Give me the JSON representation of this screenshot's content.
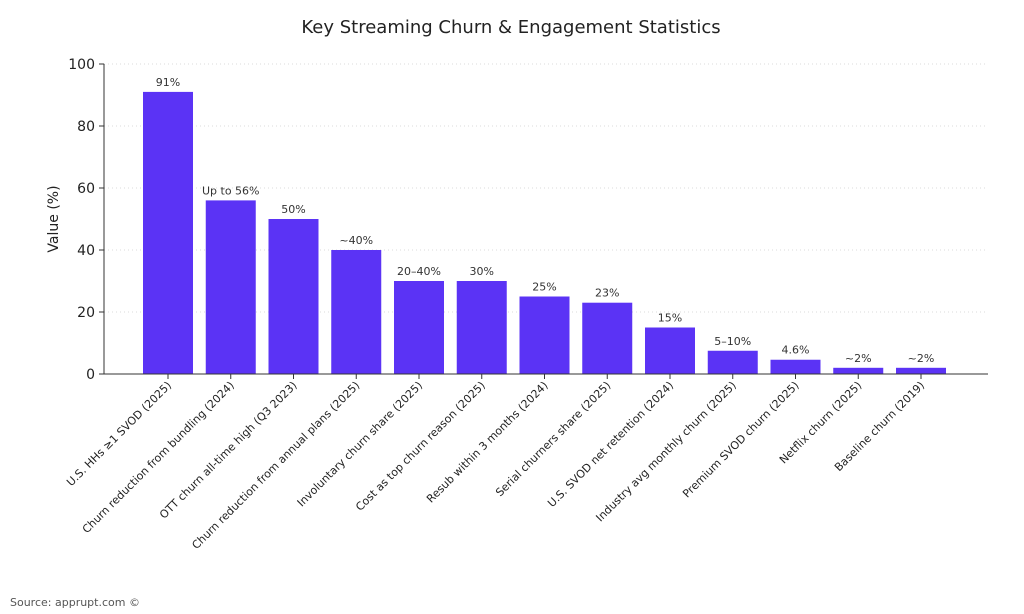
{
  "source_note": "Source: apprupt.com ©",
  "chart_data": {
    "type": "bar",
    "title": "Key Streaming Churn & Engagement Statistics",
    "xlabel": "",
    "ylabel": "Value (%)",
    "ylim": [
      0,
      100
    ],
    "yticks": [
      0,
      20,
      40,
      60,
      80,
      100
    ],
    "grid": "horizontal-dotted",
    "bar_color": "#5b33f5",
    "categories": [
      "U.S. HHs ≥1 SVOD (2025)",
      "Churn reduction from bundling (2024)",
      "OTT churn all-time high (Q3 2023)",
      "Churn reduction from annual plans (2025)",
      "Involuntary churn share (2025)",
      "Cost as top churn reason (2025)",
      "Resub within 3 months (2024)",
      "Serial churners share (2025)",
      "U.S. SVOD net retention (2024)",
      "Industry avg monthly churn (2025)",
      "Premium SVOD churn (2025)",
      "Netflix churn (2025)",
      "Baseline churn (2019)"
    ],
    "values": [
      91,
      56,
      50,
      40,
      30,
      30,
      25,
      23,
      15,
      7.5,
      4.6,
      2,
      2
    ],
    "data_labels": [
      "91%",
      "Up to 56%",
      "50%",
      "~40%",
      "20–40%",
      "30%",
      "25%",
      "23%",
      "15%",
      "5–10%",
      "4.6%",
      "~2%",
      "~2%"
    ]
  }
}
